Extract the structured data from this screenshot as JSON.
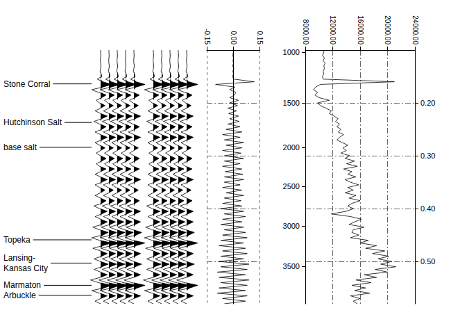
{
  "chart_data": {
    "type": "seismogram",
    "color": "#000000",
    "grid": true,
    "ylim": [
      0.1,
      0.58
    ],
    "yticks": [
      {
        "value": 0.2,
        "label": "0.20"
      },
      {
        "value": 0.3,
        "label": "0.30"
      },
      {
        "value": 0.4,
        "label": "0.40"
      },
      {
        "value": 0.5,
        "label": "0.50"
      }
    ],
    "depth_ticks": [
      {
        "depth": 1000,
        "time": 0.104
      },
      {
        "depth": 1500,
        "time": 0.2
      },
      {
        "depth": 2000,
        "time": 0.284
      },
      {
        "depth": 2500,
        "time": 0.358
      },
      {
        "depth": 3000,
        "time": 0.433
      },
      {
        "depth": 3500,
        "time": 0.509
      }
    ],
    "formations": [
      {
        "name": "Stone Corral",
        "time": 0.164
      },
      {
        "name": "Hutchinson Salt",
        "time": 0.237
      },
      {
        "name": "base salt",
        "time": 0.284
      },
      {
        "name": "Topeka",
        "time": 0.459
      },
      {
        "name": "Lansing-\nKansas City",
        "time": 0.503
      },
      {
        "name": "Marmaton",
        "time": 0.545
      },
      {
        "name": "Arbuckle",
        "time": 0.564
      }
    ],
    "time": [
      0.1,
      0.105,
      0.11,
      0.115,
      0.12,
      0.125,
      0.13,
      0.135,
      0.14,
      0.145,
      0.15,
      0.155,
      0.16,
      0.165,
      0.17,
      0.175,
      0.18,
      0.185,
      0.19,
      0.195,
      0.2,
      0.205,
      0.21,
      0.215,
      0.22,
      0.225,
      0.23,
      0.235,
      0.24,
      0.245,
      0.25,
      0.255,
      0.26,
      0.265,
      0.27,
      0.275,
      0.28,
      0.285,
      0.29,
      0.295,
      0.3,
      0.305,
      0.31,
      0.315,
      0.32,
      0.325,
      0.33,
      0.335,
      0.34,
      0.345,
      0.35,
      0.355,
      0.36,
      0.365,
      0.37,
      0.375,
      0.38,
      0.385,
      0.39,
      0.395,
      0.4,
      0.405,
      0.41,
      0.415,
      0.42,
      0.425,
      0.43,
      0.435,
      0.44,
      0.445,
      0.45,
      0.455,
      0.46,
      0.465,
      0.47,
      0.475,
      0.48,
      0.485,
      0.49,
      0.495,
      0.5,
      0.505,
      0.51,
      0.515,
      0.52,
      0.525,
      0.53,
      0.535,
      0.54,
      0.545,
      0.55,
      0.555,
      0.56,
      0.565,
      0.57,
      0.575,
      0.58
    ],
    "synthetic": {
      "panels": 2,
      "traces_per_panel": 5,
      "amplitude": [
        0,
        0,
        0.02,
        0,
        -0.02,
        0,
        0.03,
        0,
        -0.05,
        0.05,
        0.1,
        -0.3,
        0.2,
        1,
        0.2,
        -0.8,
        -0.2,
        0.5,
        0.1,
        -0.4,
        -0.1,
        0.4,
        0,
        -0.5,
        0,
        0.6,
        0.1,
        -0.6,
        -0.1,
        0.5,
        0.1,
        -0.5,
        0,
        0.6,
        0.1,
        -0.5,
        -0.1,
        0.4,
        0,
        -0.4,
        0,
        0.5,
        0.1,
        -0.4,
        -0.1,
        0.5,
        0,
        -0.5,
        0,
        0.6,
        0.1,
        -0.5,
        -0.1,
        0.4,
        0,
        -0.5,
        0,
        0.5,
        0.1,
        -0.6,
        -0.1,
        0.6,
        0.1,
        -0.5,
        0,
        0.6,
        0.1,
        -0.7,
        -0.1,
        0.7,
        0.2,
        -0.8,
        -0.1,
        1,
        0.2,
        -0.7,
        0,
        0.6,
        0.1,
        -0.6,
        0,
        0.7,
        0.1,
        -0.6,
        0,
        0.6,
        0,
        -0.9,
        -0.2,
        1,
        0.3,
        -0.8,
        -0.1,
        0.6,
        0,
        -0.5,
        0
      ]
    },
    "reflection_coefficient": {
      "xlim": [
        -0.15,
        0.15
      ],
      "xticks": [
        {
          "value": -0.15,
          "label": "-0.15"
        },
        {
          "value": 0,
          "label": "0.00"
        },
        {
          "value": 0.15,
          "label": "0.15"
        }
      ],
      "values": [
        0,
        0.001,
        -0.002,
        0.002,
        -0.001,
        0.002,
        -0.003,
        0.004,
        -0.002,
        0.003,
        -0.005,
        0.004,
        0.12,
        -0.1,
        0.01,
        -0.02,
        0.015,
        0.008,
        -0.02,
        0.03,
        -0.02,
        0.025,
        -0.03,
        0.02,
        -0.025,
        0.03,
        -0.02,
        0.035,
        -0.03,
        0.04,
        -0.04,
        0.05,
        -0.06,
        0.04,
        -0.05,
        0.06,
        -0.04,
        0.05,
        -0.06,
        0.045,
        -0.05,
        0.06,
        -0.05,
        0.04,
        -0.06,
        0.05,
        -0.045,
        0.055,
        -0.05,
        0.06,
        -0.05,
        0.04,
        -0.06,
        0.05,
        -0.04,
        0.06,
        -0.05,
        0.045,
        -0.06,
        0.05,
        -0.07,
        0.06,
        -0.05,
        0.07,
        -0.06,
        0.05,
        -0.07,
        0.06,
        -0.05,
        0.07,
        -0.06,
        0.08,
        -0.07,
        0.06,
        -0.08,
        0.07,
        -0.06,
        0.08,
        -0.07,
        0.06,
        -0.08,
        0.09,
        -0.07,
        0.08,
        -0.09,
        0.07,
        -0.08,
        0.09,
        -0.07,
        0.08,
        -0.08,
        0.07,
        -0.09,
        0.08,
        -0.06,
        0.07,
        -0.05
      ]
    },
    "velocity": {
      "xlim": [
        8000,
        24000
      ],
      "xticks": [
        {
          "value": 8000,
          "label": "8000.00"
        },
        {
          "value": 12000,
          "label": "12000.00"
        },
        {
          "value": 16000,
          "label": "16000.00"
        },
        {
          "value": 20000,
          "label": "20000.00"
        },
        {
          "value": 24000,
          "label": "24000.00"
        }
      ],
      "values": [
        10600,
        10700,
        10500,
        10800,
        10600,
        10900,
        10700,
        10800,
        10600,
        10700,
        10500,
        10600,
        21000,
        10200,
        9500,
        9200,
        9800,
        9400,
        10000,
        11500,
        9800,
        10200,
        11000,
        11800,
        11500,
        12200,
        12800,
        12400,
        13000,
        12600,
        13200,
        12800,
        13600,
        13000,
        12600,
        13400,
        14200,
        13500,
        14000,
        13200,
        14500,
        13800,
        15200,
        14000,
        15600,
        13600,
        14800,
        14200,
        15400,
        13800,
        14600,
        15800,
        14200,
        15000,
        13800,
        15400,
        14400,
        16000,
        14800,
        14200,
        15000,
        14000,
        11800,
        14600,
        16200,
        15200,
        14400,
        16600,
        15000,
        14800,
        15800,
        14600,
        17200,
        16000,
        18400,
        16800,
        19600,
        17800,
        20200,
        18600,
        20600,
        19000,
        21200,
        18200,
        20000,
        16600,
        18400,
        15400,
        17600,
        14800,
        16800,
        15200,
        17400,
        14600,
        16000,
        15000,
        15600
      ]
    }
  }
}
